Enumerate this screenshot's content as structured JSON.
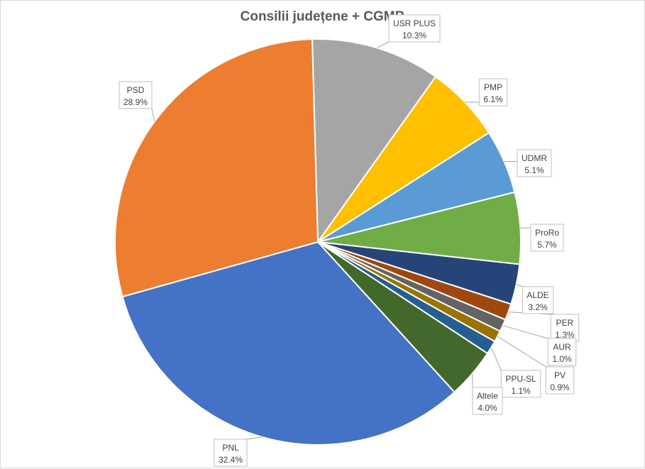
{
  "chart_data": {
    "type": "pie",
    "title": "Consilii județene + CGMB",
    "slices": [
      {
        "name": "USR PLUS",
        "value": 10.3,
        "label": "10.3%",
        "color": "#a5a5a5"
      },
      {
        "name": "PMP",
        "value": 6.1,
        "label": "6.1%",
        "color": "#ffc000"
      },
      {
        "name": "UDMR",
        "value": 5.1,
        "label": "5.1%",
        "color": "#5b9bd5"
      },
      {
        "name": "ProRo",
        "value": 5.7,
        "label": "5.7%",
        "color": "#70ad47"
      },
      {
        "name": "ALDE",
        "value": 3.2,
        "label": "3.2%",
        "color": "#264478"
      },
      {
        "name": "PER",
        "value": 1.3,
        "label": "1.3%",
        "color": "#9e480e"
      },
      {
        "name": "AUR",
        "value": 1.0,
        "label": "1.0%",
        "color": "#636363"
      },
      {
        "name": "PV",
        "value": 0.9,
        "label": "0.9%",
        "color": "#997300"
      },
      {
        "name": "PPU-SL",
        "value": 1.1,
        "label": "1.1%",
        "color": "#255e91"
      },
      {
        "name": "Altele",
        "value": 4.0,
        "label": "4.0%",
        "color": "#43682b"
      },
      {
        "name": "PNL",
        "value": 32.4,
        "label": "32.4%",
        "color": "#4472c4"
      },
      {
        "name": "PSD",
        "value": 28.9,
        "label": "28.9%",
        "color": "#ed7d31"
      }
    ]
  }
}
